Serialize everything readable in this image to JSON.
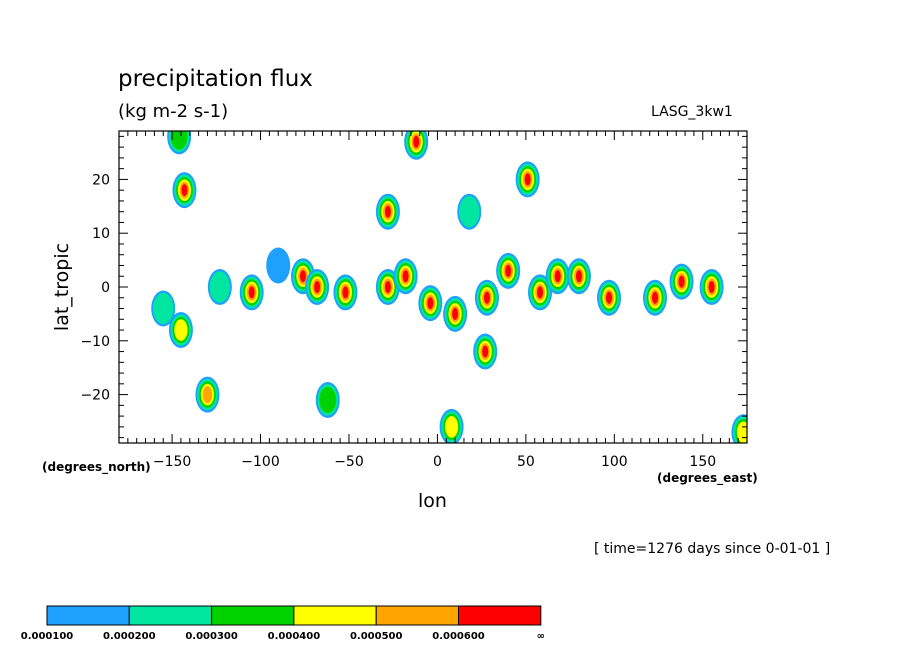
{
  "chart_data": {
    "type": "contour",
    "title": "precipitation flux",
    "units": "(kg m-2 s-1)",
    "model": "LASG_3kw1",
    "xlabel": "lon",
    "ylabel": "lat_tropic",
    "x_unit_label": "(degrees_east)",
    "y_unit_label": "(degrees_north)",
    "time_label": "[ time=1276 days since 0-01-01 ]",
    "xlim": [
      -180,
      175
    ],
    "ylim": [
      -29,
      29
    ],
    "x_ticks": [
      -150,
      -100,
      -50,
      0,
      50,
      100,
      150
    ],
    "x_tick_labels": [
      "−150",
      "−100",
      "−50",
      "0",
      "50",
      "100",
      "150"
    ],
    "y_ticks": [
      -20,
      -10,
      0,
      10,
      20
    ],
    "y_tick_labels": [
      "−20",
      "−10",
      "0",
      "10",
      "20"
    ],
    "levels": [
      0.0001,
      0.0002,
      0.0003,
      0.0004,
      0.0005,
      0.0006
    ],
    "level_labels": [
      "0.000100",
      "0.000200",
      "0.000300",
      "0.000400",
      "0.000500",
      "0.000600",
      "∞"
    ],
    "colors": [
      "#1ea0ff",
      "#00e6a0",
      "#00d200",
      "#ffff00",
      "#ffa500",
      "#ff0000"
    ],
    "cells": [
      {
        "lon": -146,
        "lat": 28,
        "level": 3
      },
      {
        "lon": -143,
        "lat": 18,
        "level": 6
      },
      {
        "lon": -155,
        "lat": -4,
        "level": 2
      },
      {
        "lon": -145,
        "lat": -8,
        "level": 4
      },
      {
        "lon": -130,
        "lat": -20,
        "level": 5
      },
      {
        "lon": -123,
        "lat": 0,
        "level": 2
      },
      {
        "lon": -105,
        "lat": -1,
        "level": 6
      },
      {
        "lon": -90,
        "lat": 4,
        "level": 1
      },
      {
        "lon": -76,
        "lat": 2,
        "level": 6
      },
      {
        "lon": -68,
        "lat": 0,
        "level": 6
      },
      {
        "lon": -62,
        "lat": -21,
        "level": 3
      },
      {
        "lon": -52,
        "lat": -1,
        "level": 6
      },
      {
        "lon": -28,
        "lat": 14,
        "level": 6
      },
      {
        "lon": -28,
        "lat": 0,
        "level": 6
      },
      {
        "lon": -18,
        "lat": 2,
        "level": 6
      },
      {
        "lon": -12,
        "lat": 27,
        "level": 6
      },
      {
        "lon": -4,
        "lat": -3,
        "level": 6
      },
      {
        "lon": 8,
        "lat": -26,
        "level": 4
      },
      {
        "lon": 10,
        "lat": -5,
        "level": 6
      },
      {
        "lon": 18,
        "lat": 14,
        "level": 2
      },
      {
        "lon": 28,
        "lat": -2,
        "level": 6
      },
      {
        "lon": 27,
        "lat": -12,
        "level": 6
      },
      {
        "lon": 40,
        "lat": 3,
        "level": 6
      },
      {
        "lon": 51,
        "lat": 20,
        "level": 6
      },
      {
        "lon": 58,
        "lat": -1,
        "level": 6
      },
      {
        "lon": 68,
        "lat": 2,
        "level": 6
      },
      {
        "lon": 80,
        "lat": 2,
        "level": 6
      },
      {
        "lon": 97,
        "lat": -2,
        "level": 6
      },
      {
        "lon": 123,
        "lat": -2,
        "level": 6
      },
      {
        "lon": 138,
        "lat": 1,
        "level": 6
      },
      {
        "lon": 155,
        "lat": 0,
        "level": 6
      },
      {
        "lon": 173,
        "lat": -27,
        "level": 4
      }
    ]
  }
}
